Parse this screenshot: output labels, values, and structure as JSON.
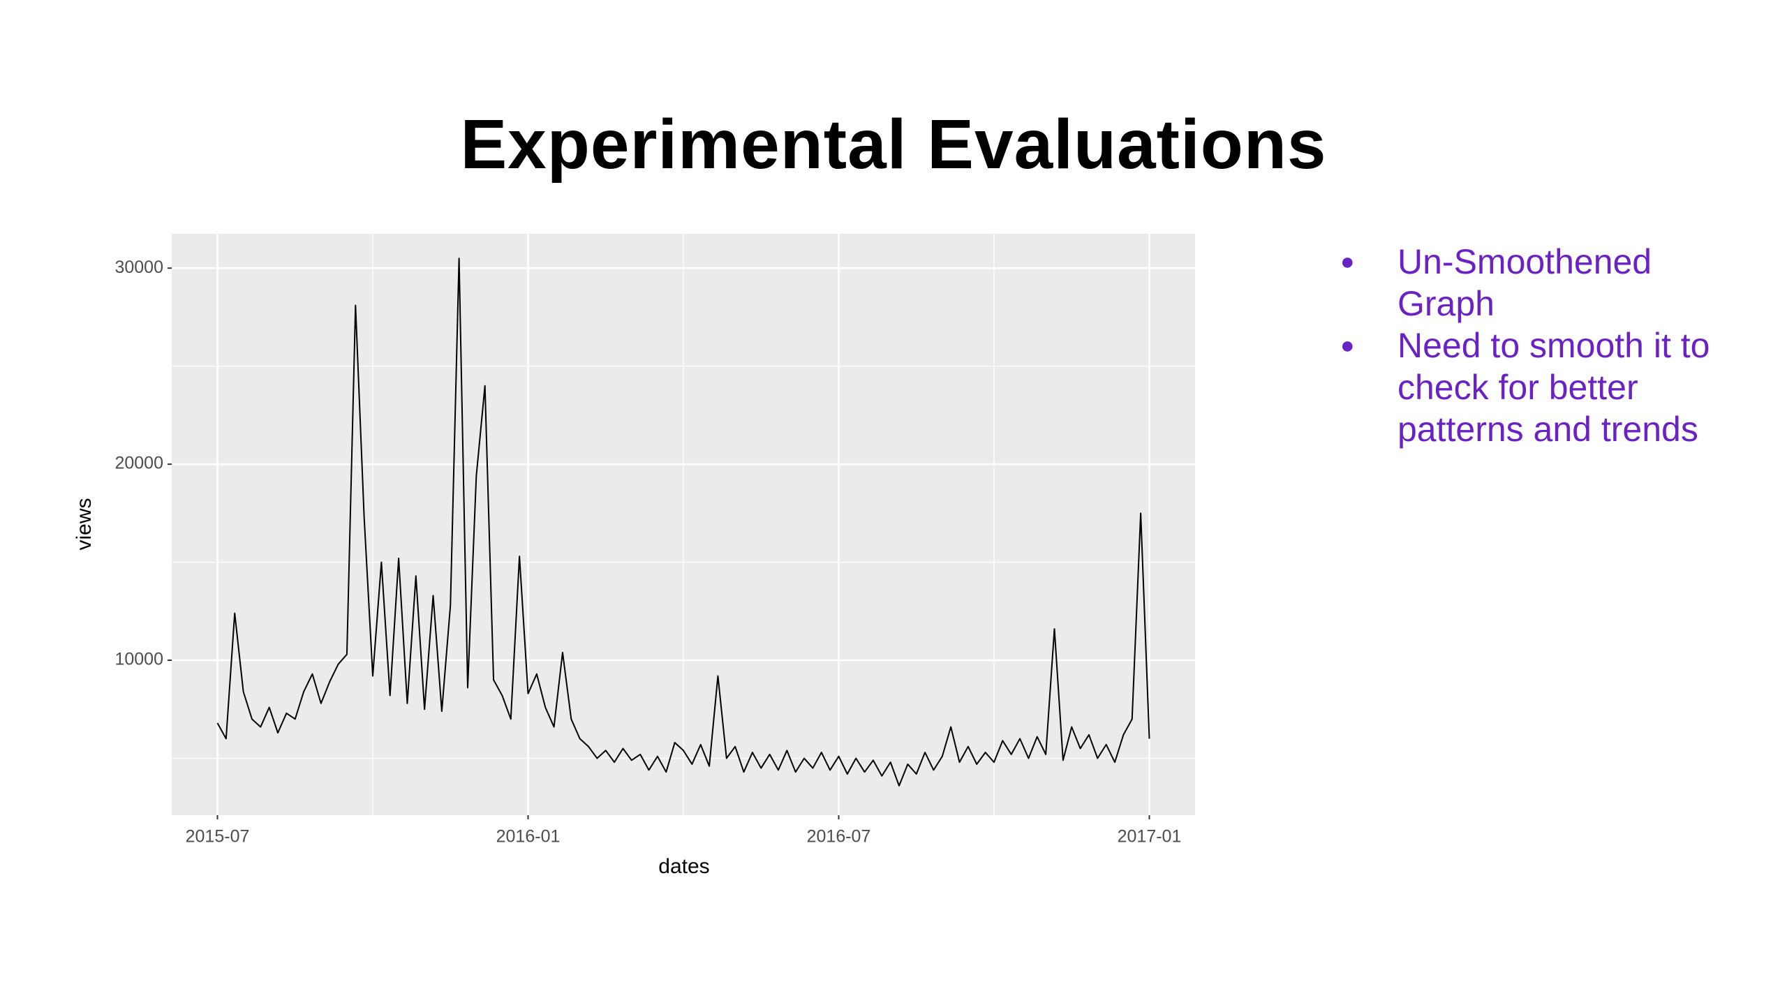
{
  "slide": {
    "title": "Experimental Evaluations",
    "bullets": [
      "Un-Smoothened Graph",
      "Need to smooth it to check for better patterns and trends"
    ]
  },
  "chart_data": {
    "type": "line",
    "xlabel": "dates",
    "ylabel": "views",
    "color": "#000000",
    "background": "#ebebeb",
    "grid": true,
    "values": [
      6800,
      6000,
      12400,
      8400,
      7000,
      6600,
      7600,
      6300,
      7300,
      7000,
      8400,
      9300,
      7800,
      8900,
      9800,
      10300,
      28100,
      17300,
      9200,
      15000,
      8200,
      15200,
      7800,
      14300,
      7500,
      13300,
      7400,
      12800,
      30500,
      8600,
      19400,
      24000,
      9000,
      8200,
      7000,
      15300,
      8300,
      9300,
      7600,
      6600,
      10400,
      7000,
      6000,
      5600,
      5000,
      5400,
      4800,
      5500,
      4900,
      5200,
      4400,
      5100,
      4300,
      5800,
      5400,
      4700,
      5700,
      4600,
      9200,
      5000,
      5600,
      4300,
      5300,
      4500,
      5200,
      4400,
      5400,
      4300,
      5000,
      4500,
      5300,
      4400,
      5100,
      4200,
      5000,
      4300,
      4900,
      4100,
      4800,
      3600,
      4700,
      4200,
      5300,
      4400,
      5100,
      6600,
      4800,
      5600,
      4700,
      5300,
      4800,
      5900,
      5200,
      6000,
      5000,
      6100,
      5200,
      11600,
      4900,
      6600,
      5500,
      6200,
      5000,
      5700,
      4800,
      6200,
      7000,
      17500,
      6000
    ],
    "xlim": [
      -5.3,
      113.3
    ],
    "xticks": [
      {
        "value": 0,
        "label": "2015-07"
      },
      {
        "value": 36,
        "label": "2016-01"
      },
      {
        "value": 72,
        "label": "2016-07"
      },
      {
        "value": 108,
        "label": "2017-01"
      }
    ],
    "ylim": [
      2100,
      31750
    ],
    "yticks": [
      10000,
      20000,
      30000
    ]
  }
}
